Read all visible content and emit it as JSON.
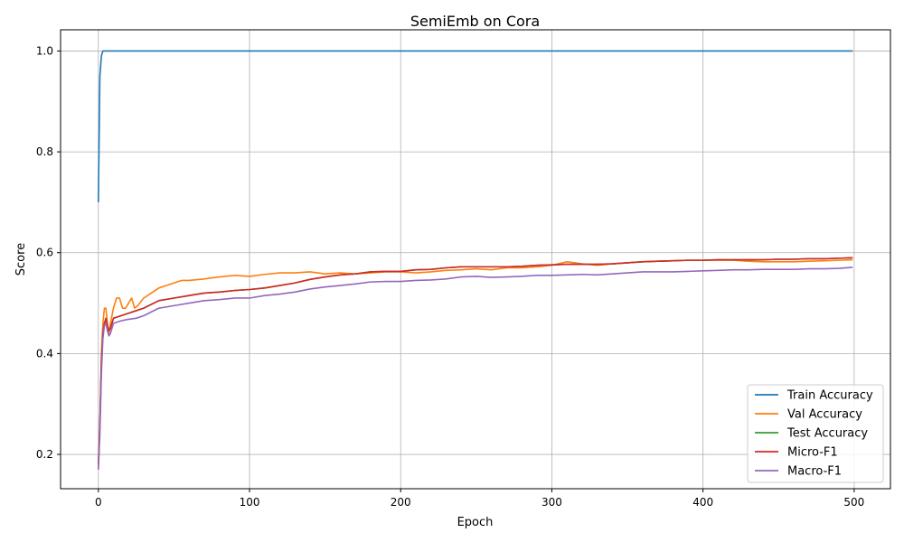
{
  "chart_data": {
    "type": "line",
    "title": "SemiEmb on Cora",
    "xlabel": "Epoch",
    "ylabel": "Score",
    "xlim": [
      -25,
      524
    ],
    "ylim": [
      0.132,
      1.042
    ],
    "xticks": [
      0,
      100,
      200,
      300,
      400,
      500
    ],
    "yticks": [
      0.2,
      0.4,
      0.6,
      0.8,
      1.0
    ],
    "xtick_labels": [
      "0",
      "100",
      "200",
      "300",
      "400",
      "500"
    ],
    "ytick_labels": [
      "0.2",
      "0.4",
      "0.6",
      "0.8",
      "1.0"
    ],
    "grid": true,
    "legend_position": "lower-right",
    "series": [
      {
        "name": "Train Accuracy",
        "color": "#1f77b4",
        "points": [
          [
            0,
            0.7
          ],
          [
            1,
            0.95
          ],
          [
            2,
            0.99
          ],
          [
            3,
            1.0
          ],
          [
            10,
            1.0
          ],
          [
            100,
            1.0
          ],
          [
            200,
            1.0
          ],
          [
            300,
            1.0
          ],
          [
            400,
            1.0
          ],
          [
            499,
            1.0
          ]
        ]
      },
      {
        "name": "Val Accuracy",
        "color": "#ff7f0e",
        "points": [
          [
            0,
            0.17
          ],
          [
            1,
            0.26
          ],
          [
            2,
            0.4
          ],
          [
            3,
            0.46
          ],
          [
            4,
            0.49
          ],
          [
            5,
            0.49
          ],
          [
            6,
            0.46
          ],
          [
            7,
            0.44
          ],
          [
            8,
            0.46
          ],
          [
            10,
            0.49
          ],
          [
            12,
            0.51
          ],
          [
            14,
            0.51
          ],
          [
            16,
            0.49
          ],
          [
            18,
            0.49
          ],
          [
            20,
            0.5
          ],
          [
            22,
            0.51
          ],
          [
            24,
            0.49
          ],
          [
            26,
            0.495
          ],
          [
            30,
            0.51
          ],
          [
            35,
            0.52
          ],
          [
            40,
            0.53
          ],
          [
            45,
            0.535
          ],
          [
            50,
            0.54
          ],
          [
            55,
            0.545
          ],
          [
            60,
            0.545
          ],
          [
            70,
            0.548
          ],
          [
            80,
            0.552
          ],
          [
            90,
            0.555
          ],
          [
            100,
            0.553
          ],
          [
            110,
            0.557
          ],
          [
            120,
            0.56
          ],
          [
            130,
            0.56
          ],
          [
            140,
            0.562
          ],
          [
            150,
            0.558
          ],
          [
            160,
            0.56
          ],
          [
            170,
            0.558
          ],
          [
            180,
            0.56
          ],
          [
            190,
            0.562
          ],
          [
            200,
            0.562
          ],
          [
            210,
            0.56
          ],
          [
            220,
            0.562
          ],
          [
            230,
            0.565
          ],
          [
            240,
            0.566
          ],
          [
            250,
            0.568
          ],
          [
            260,
            0.566
          ],
          [
            270,
            0.57
          ],
          [
            280,
            0.57
          ],
          [
            290,
            0.572
          ],
          [
            300,
            0.575
          ],
          [
            310,
            0.582
          ],
          [
            320,
            0.578
          ],
          [
            330,
            0.575
          ],
          [
            340,
            0.578
          ],
          [
            350,
            0.58
          ],
          [
            360,
            0.582
          ],
          [
            370,
            0.583
          ],
          [
            380,
            0.584
          ],
          [
            390,
            0.585
          ],
          [
            400,
            0.585
          ],
          [
            410,
            0.585
          ],
          [
            420,
            0.585
          ],
          [
            430,
            0.583
          ],
          [
            440,
            0.582
          ],
          [
            450,
            0.582
          ],
          [
            460,
            0.582
          ],
          [
            470,
            0.583
          ],
          [
            480,
            0.584
          ],
          [
            490,
            0.585
          ],
          [
            499,
            0.586
          ]
        ]
      },
      {
        "name": "Test Accuracy",
        "color": "#2ca02c",
        "points": [
          [
            0,
            0.18
          ],
          [
            1,
            0.26
          ],
          [
            2,
            0.38
          ],
          [
            3,
            0.44
          ],
          [
            4,
            0.46
          ],
          [
            5,
            0.47
          ],
          [
            6,
            0.455
          ],
          [
            7,
            0.445
          ],
          [
            8,
            0.45
          ],
          [
            10,
            0.47
          ],
          [
            15,
            0.475
          ],
          [
            20,
            0.48
          ],
          [
            25,
            0.485
          ],
          [
            30,
            0.49
          ],
          [
            40,
            0.505
          ],
          [
            50,
            0.51
          ],
          [
            60,
            0.515
          ],
          [
            70,
            0.52
          ],
          [
            80,
            0.522
          ],
          [
            90,
            0.525
          ],
          [
            100,
            0.527
          ],
          [
            110,
            0.53
          ],
          [
            120,
            0.535
          ],
          [
            130,
            0.54
          ],
          [
            140,
            0.547
          ],
          [
            150,
            0.552
          ],
          [
            160,
            0.556
          ],
          [
            170,
            0.558
          ],
          [
            180,
            0.562
          ],
          [
            190,
            0.563
          ],
          [
            200,
            0.563
          ],
          [
            210,
            0.566
          ],
          [
            220,
            0.567
          ],
          [
            230,
            0.57
          ],
          [
            240,
            0.572
          ],
          [
            250,
            0.572
          ],
          [
            260,
            0.572
          ],
          [
            270,
            0.572
          ],
          [
            280,
            0.573
          ],
          [
            290,
            0.575
          ],
          [
            300,
            0.576
          ],
          [
            310,
            0.577
          ],
          [
            320,
            0.577
          ],
          [
            330,
            0.577
          ],
          [
            340,
            0.578
          ],
          [
            350,
            0.58
          ],
          [
            360,
            0.582
          ],
          [
            370,
            0.583
          ],
          [
            380,
            0.584
          ],
          [
            390,
            0.585
          ],
          [
            400,
            0.585
          ],
          [
            410,
            0.586
          ],
          [
            420,
            0.586
          ],
          [
            430,
            0.586
          ],
          [
            440,
            0.586
          ],
          [
            450,
            0.587
          ],
          [
            460,
            0.587
          ],
          [
            470,
            0.588
          ],
          [
            480,
            0.588
          ],
          [
            490,
            0.589
          ],
          [
            499,
            0.59
          ]
        ]
      },
      {
        "name": "Micro-F1",
        "color": "#d62728",
        "points": [
          [
            0,
            0.18
          ],
          [
            1,
            0.26
          ],
          [
            2,
            0.38
          ],
          [
            3,
            0.44
          ],
          [
            4,
            0.46
          ],
          [
            5,
            0.47
          ],
          [
            6,
            0.455
          ],
          [
            7,
            0.445
          ],
          [
            8,
            0.45
          ],
          [
            10,
            0.47
          ],
          [
            15,
            0.475
          ],
          [
            20,
            0.48
          ],
          [
            25,
            0.485
          ],
          [
            30,
            0.49
          ],
          [
            40,
            0.505
          ],
          [
            50,
            0.51
          ],
          [
            60,
            0.515
          ],
          [
            70,
            0.52
          ],
          [
            80,
            0.522
          ],
          [
            90,
            0.525
          ],
          [
            100,
            0.527
          ],
          [
            110,
            0.53
          ],
          [
            120,
            0.535
          ],
          [
            130,
            0.54
          ],
          [
            140,
            0.547
          ],
          [
            150,
            0.552
          ],
          [
            160,
            0.556
          ],
          [
            170,
            0.558
          ],
          [
            180,
            0.562
          ],
          [
            190,
            0.563
          ],
          [
            200,
            0.563
          ],
          [
            210,
            0.566
          ],
          [
            220,
            0.567
          ],
          [
            230,
            0.57
          ],
          [
            240,
            0.572
          ],
          [
            250,
            0.572
          ],
          [
            260,
            0.572
          ],
          [
            270,
            0.572
          ],
          [
            280,
            0.573
          ],
          [
            290,
            0.575
          ],
          [
            300,
            0.576
          ],
          [
            310,
            0.577
          ],
          [
            320,
            0.577
          ],
          [
            330,
            0.577
          ],
          [
            340,
            0.578
          ],
          [
            350,
            0.58
          ],
          [
            360,
            0.582
          ],
          [
            370,
            0.583
          ],
          [
            380,
            0.584
          ],
          [
            390,
            0.585
          ],
          [
            400,
            0.585
          ],
          [
            410,
            0.586
          ],
          [
            420,
            0.586
          ],
          [
            430,
            0.586
          ],
          [
            440,
            0.586
          ],
          [
            450,
            0.587
          ],
          [
            460,
            0.587
          ],
          [
            470,
            0.588
          ],
          [
            480,
            0.588
          ],
          [
            490,
            0.589
          ],
          [
            499,
            0.59
          ]
        ]
      },
      {
        "name": "Macro-F1",
        "color": "#9467bd",
        "points": [
          [
            0,
            0.17
          ],
          [
            1,
            0.24
          ],
          [
            2,
            0.36
          ],
          [
            3,
            0.43
          ],
          [
            4,
            0.455
          ],
          [
            5,
            0.46
          ],
          [
            6,
            0.445
          ],
          [
            7,
            0.435
          ],
          [
            8,
            0.44
          ],
          [
            10,
            0.46
          ],
          [
            15,
            0.465
          ],
          [
            20,
            0.468
          ],
          [
            25,
            0.47
          ],
          [
            30,
            0.475
          ],
          [
            40,
            0.49
          ],
          [
            50,
            0.495
          ],
          [
            60,
            0.5
          ],
          [
            70,
            0.505
          ],
          [
            80,
            0.507
          ],
          [
            90,
            0.51
          ],
          [
            100,
            0.51
          ],
          [
            110,
            0.515
          ],
          [
            120,
            0.518
          ],
          [
            130,
            0.522
          ],
          [
            140,
            0.528
          ],
          [
            150,
            0.532
          ],
          [
            160,
            0.535
          ],
          [
            170,
            0.538
          ],
          [
            180,
            0.542
          ],
          [
            190,
            0.543
          ],
          [
            200,
            0.543
          ],
          [
            210,
            0.545
          ],
          [
            220,
            0.546
          ],
          [
            230,
            0.548
          ],
          [
            240,
            0.552
          ],
          [
            250,
            0.553
          ],
          [
            260,
            0.551
          ],
          [
            270,
            0.552
          ],
          [
            280,
            0.553
          ],
          [
            290,
            0.555
          ],
          [
            300,
            0.555
          ],
          [
            310,
            0.556
          ],
          [
            320,
            0.557
          ],
          [
            330,
            0.556
          ],
          [
            340,
            0.558
          ],
          [
            350,
            0.56
          ],
          [
            360,
            0.562
          ],
          [
            370,
            0.562
          ],
          [
            380,
            0.562
          ],
          [
            390,
            0.563
          ],
          [
            400,
            0.564
          ],
          [
            410,
            0.565
          ],
          [
            420,
            0.566
          ],
          [
            430,
            0.566
          ],
          [
            440,
            0.567
          ],
          [
            450,
            0.567
          ],
          [
            460,
            0.567
          ],
          [
            470,
            0.568
          ],
          [
            480,
            0.568
          ],
          [
            490,
            0.569
          ],
          [
            499,
            0.571
          ]
        ]
      }
    ]
  }
}
